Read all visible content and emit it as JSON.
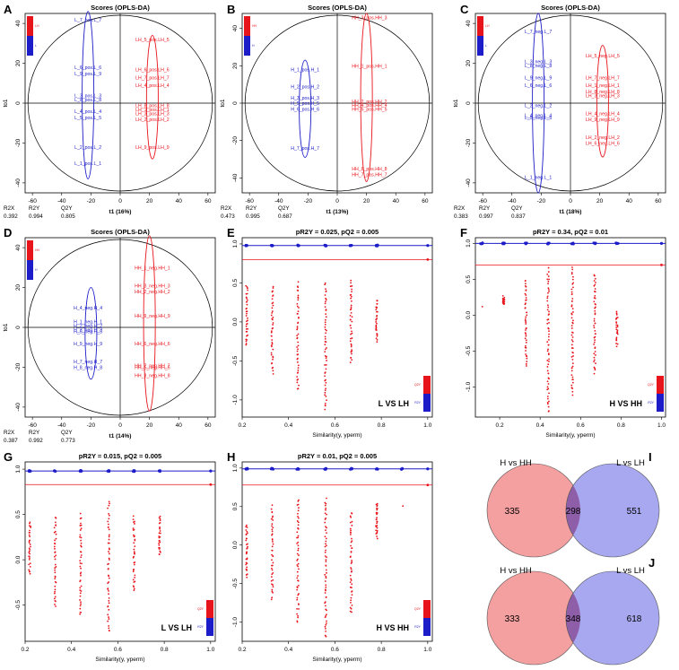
{
  "panel_letters": [
    "A",
    "B",
    "C",
    "D",
    "E",
    "F",
    "G",
    "H",
    "I",
    "J"
  ],
  "scores_title": "Scores (OPLS-DA)",
  "scores_ylabel": "to1",
  "stat_labels": [
    "R2X",
    "R2Y",
    "Q2Y"
  ],
  "colors": {
    "red": "#e8141b",
    "blue": "#1c1cc8",
    "venn_red": "#f4a0a0",
    "venn_blue": "#a8a8f0",
    "venn_overlap": "#8e5fa8"
  },
  "chart_data": [
    {
      "id": "A",
      "type": "scatter",
      "title": "Scores (OPLS-DA)",
      "xlabel": "t1 (16%)",
      "ylabel": "to1",
      "xlim": [
        -65,
        65
      ],
      "ylim": [
        -45,
        45
      ],
      "xticks": [
        -60,
        -40,
        -20,
        0,
        20,
        40,
        60
      ],
      "yticks": [
        -40,
        -20,
        0,
        20,
        40
      ],
      "stats": {
        "R2X": "0.392",
        "R2Y": "0.994",
        "Q2Y": "0.805"
      },
      "legend": [
        "LH",
        "L"
      ],
      "series": [
        {
          "name": "L",
          "color": "blue",
          "points": [
            {
              "label": "L_7_pos.L_7",
              "x": -22,
              "y": 41
            },
            {
              "label": "L_6_pos.L_6",
              "x": -22,
              "y": 17
            },
            {
              "label": "L_9_pos.L_9",
              "x": -22,
              "y": 14
            },
            {
              "label": "L_3_pos.L_3",
              "x": -22,
              "y": 3
            },
            {
              "label": "L_8_pos.L_8",
              "x": -22,
              "y": 1
            },
            {
              "label": "L_4_pos.L_4",
              "x": -22,
              "y": -5
            },
            {
              "label": "L_5_pos.L_5",
              "x": -22,
              "y": -8
            },
            {
              "label": "L_2_pos.L_2",
              "x": -22,
              "y": -23
            },
            {
              "label": "L_1_pos.L_1",
              "x": -22,
              "y": -31
            }
          ]
        },
        {
          "name": "LH",
          "color": "red",
          "points": [
            {
              "label": "LH_5_pos.LH_5",
              "x": 22,
              "y": 31
            },
            {
              "label": "LH_6_pos.LH_6",
              "x": 22,
              "y": 16
            },
            {
              "label": "LH_7_pos.LH_7",
              "x": 22,
              "y": 12
            },
            {
              "label": "LH_4_pos.LH_4",
              "x": 22,
              "y": 8
            },
            {
              "label": "LH_8_pos.LH_8",
              "x": 22,
              "y": -2
            },
            {
              "label": "LH_1_pos.LH_1",
              "x": 22,
              "y": -4
            },
            {
              "label": "LH_3_pos.LH_3",
              "x": 22,
              "y": -6
            },
            {
              "label": "LH_2_pos.LH_2",
              "x": 22,
              "y": -9
            },
            {
              "label": "LH_9_pos.LH_9",
              "x": 22,
              "y": -23
            }
          ]
        }
      ],
      "ellipses": [
        {
          "color": "blue",
          "cx": -22,
          "cy": 4,
          "rx": 4,
          "ry": 42
        },
        {
          "color": "red",
          "cx": 22,
          "cy": 3,
          "rx": 4,
          "ry": 31
        }
      ]
    },
    {
      "id": "B",
      "type": "scatter",
      "title": "Scores (OPLS-DA)",
      "xlabel": "t1 (13%)",
      "ylabel": "to1",
      "xlim": [
        -65,
        65
      ],
      "ylim": [
        -48,
        48
      ],
      "xticks": [
        -60,
        -40,
        -20,
        0,
        20,
        40,
        60
      ],
      "yticks": [
        -40,
        -20,
        0,
        20,
        40
      ],
      "stats": {
        "R2X": "0.473",
        "R2Y": "0.995",
        "Q2Y": "0.687"
      },
      "legend": [
        "HH",
        "H"
      ],
      "series": [
        {
          "name": "H",
          "color": "blue",
          "points": [
            {
              "label": "H_1_pos.H_1",
              "x": -22,
              "y": 17
            },
            {
              "label": "H_2_pos.H_2",
              "x": -22,
              "y": 8
            },
            {
              "label": "H_3_pos.H_3",
              "x": -22,
              "y": 2
            },
            {
              "label": "H_5_pos.H_5",
              "x": -22,
              "y": -1
            },
            {
              "label": "H_6_pos.H_6",
              "x": -22,
              "y": -4
            },
            {
              "label": "H_7_pos.H_7",
              "x": -22,
              "y": -25
            }
          ]
        },
        {
          "name": "HH",
          "color": "red",
          "points": [
            {
              "label": "HH_3_pos.HH_3",
              "x": 22,
              "y": 45
            },
            {
              "label": "HH_1_pos.HH_1",
              "x": 22,
              "y": 19
            },
            {
              "label": "HH_2_pos.HH_2",
              "x": 22,
              "y": 0
            },
            {
              "label": "HH_4_pos.HH_4",
              "x": 22,
              "y": -2
            },
            {
              "label": "HH_5_pos.HH_5",
              "x": 22,
              "y": -4
            },
            {
              "label": "HH_8_pos.HH_8",
              "x": 22,
              "y": -36
            },
            {
              "label": "HH_7_pos.HH_7",
              "x": 22,
              "y": -39
            }
          ]
        }
      ],
      "ellipses": [
        {
          "color": "blue",
          "cx": -22,
          "cy": -3,
          "rx": 4,
          "ry": 26
        },
        {
          "color": "red",
          "cx": 20,
          "cy": 3,
          "rx": 4,
          "ry": 45
        }
      ]
    },
    {
      "id": "C",
      "type": "scatter",
      "title": "Scores (OPLS-DA)",
      "xlabel": "t1 (18%)",
      "ylabel": "to1",
      "xlim": [
        -65,
        65
      ],
      "ylim": [
        -45,
        45
      ],
      "xticks": [
        -60,
        -40,
        -20,
        0,
        20,
        40,
        60
      ],
      "yticks": [
        -40,
        -20,
        0,
        20,
        40
      ],
      "stats": {
        "R2X": "0.383",
        "R2Y": "0.997",
        "Q2Y": "0.837"
      },
      "legend": [
        "LH",
        "L"
      ],
      "series": [
        {
          "name": "L",
          "color": "blue",
          "points": [
            {
              "label": "L_7_neg.L_7",
              "x": -22,
              "y": 35
            },
            {
              "label": "L_3_neg.L_3",
              "x": -22,
              "y": 20
            },
            {
              "label": "L_8_neg.L_8",
              "x": -22,
              "y": 18
            },
            {
              "label": "L_9_neg.L_9",
              "x": -22,
              "y": 12
            },
            {
              "label": "L_6_neg.L_6",
              "x": -22,
              "y": 8
            },
            {
              "label": "L_2_neg.L_2",
              "x": -22,
              "y": -2
            },
            {
              "label": "L_4_neg.L_4",
              "x": -22,
              "y": -7
            },
            {
              "label": "L_5_neg.L_5",
              "x": -22,
              "y": -8
            },
            {
              "label": "L_1_neg.L_1",
              "x": -22,
              "y": -38
            }
          ]
        },
        {
          "name": "LH",
          "color": "red",
          "points": [
            {
              "label": "LH_5_neg.LH_5",
              "x": 22,
              "y": 23
            },
            {
              "label": "LH_7_neg.LH_7",
              "x": 22,
              "y": 12
            },
            {
              "label": "LH_1_neg.LH_1",
              "x": 22,
              "y": 8
            },
            {
              "label": "LH_8_neg.LH_8",
              "x": 22,
              "y": 5
            },
            {
              "label": "LH_3_neg.LH_3",
              "x": 22,
              "y": 3
            },
            {
              "label": "LH_4_neg.LH_4",
              "x": 22,
              "y": -6
            },
            {
              "label": "LH_9_neg.LH_9",
              "x": 22,
              "y": -9
            },
            {
              "label": "LH_2_neg.LH_2",
              "x": 22,
              "y": -18
            },
            {
              "label": "LH_6_neg.LH_6",
              "x": 22,
              "y": -21
            }
          ]
        }
      ],
      "ellipses": [
        {
          "color": "blue",
          "cx": -22,
          "cy": 0,
          "rx": 4,
          "ry": 45
        },
        {
          "color": "red",
          "cx": 22,
          "cy": 1,
          "rx": 4,
          "ry": 28
        }
      ]
    },
    {
      "id": "D",
      "type": "scatter",
      "title": "Scores (OPLS-DA)",
      "xlabel": "t1 (14%)",
      "ylabel": "to1",
      "xlim": [
        -65,
        65
      ],
      "ylim": [
        -45,
        45
      ],
      "xticks": [
        -60,
        -40,
        -20,
        0,
        20,
        40,
        60
      ],
      "yticks": [
        -40,
        -20,
        0,
        20,
        40
      ],
      "stats": {
        "R2X": "0.387",
        "R2Y": "0.992",
        "Q2Y": "0.773"
      },
      "legend": [
        "HH",
        "H"
      ],
      "series": [
        {
          "name": "H",
          "color": "blue",
          "points": [
            {
              "label": "H_4_neg.H_4",
              "x": -22,
              "y": 9
            },
            {
              "label": "H_1_neg.H_1",
              "x": -22,
              "y": 2
            },
            {
              "label": "H_2_neg.H_2",
              "x": -22,
              "y": 0
            },
            {
              "label": "H_3_neg.H_3",
              "x": -22,
              "y": -2
            },
            {
              "label": "H_5_neg.H_5",
              "x": -22,
              "y": -3
            },
            {
              "label": "H_9_neg.H_9",
              "x": -22,
              "y": -9
            },
            {
              "label": "H_7_neg.H_7",
              "x": -22,
              "y": -18
            },
            {
              "label": "H_8_neg.H_8",
              "x": -22,
              "y": -21
            }
          ]
        },
        {
          "name": "HH",
          "color": "red",
          "points": [
            {
              "label": "HH_1_neg.HH_1",
              "x": 22,
              "y": 29
            },
            {
              "label": "HH_3_neg.HH_3",
              "x": 22,
              "y": 20
            },
            {
              "label": "HH_2_neg.HH_2",
              "x": 22,
              "y": 17
            },
            {
              "label": "HH_9_neg.HH_9",
              "x": 22,
              "y": 5
            },
            {
              "label": "HH_6_neg.HH_6",
              "x": 22,
              "y": -9
            },
            {
              "label": "HH_7_neg.HH_7",
              "x": 22,
              "y": -20
            },
            {
              "label": "HH_5_neg.HH_5",
              "x": 22,
              "y": -21
            },
            {
              "label": "HH_8_neg.HH_8",
              "x": 22,
              "y": -25
            }
          ]
        }
      ],
      "ellipses": [
        {
          "color": "blue",
          "cx": -20,
          "cy": -3,
          "rx": 4,
          "ry": 23
        },
        {
          "color": "red",
          "cx": 20,
          "cy": 2,
          "rx": 4,
          "ry": 44
        }
      ]
    },
    {
      "id": "E",
      "type": "scatter",
      "title": "pR2Y = 0.025, pQ2 = 0.005",
      "xlabel": "Similarity(y, yperm)",
      "legend": [
        "Q2Y",
        "R2Y"
      ],
      "annotation": "L VS LH",
      "xlim": [
        0.2,
        1.02
      ],
      "ylim": [
        -1.22,
        1.08
      ],
      "xticks": [
        0.2,
        0.4,
        0.6,
        0.8,
        1.0
      ],
      "yticks": [
        -1.0,
        -0.5,
        0.0,
        0.5,
        1.0
      ],
      "r2y_level": 0.98,
      "q2_level": 0.8,
      "sim_values": [
        0.22,
        0.33,
        0.44,
        0.56,
        0.67,
        0.78
      ],
      "q2_spread": [
        [
          -0.3,
          0.46
        ],
        [
          -0.65,
          0.45
        ],
        [
          -0.87,
          0.5
        ],
        [
          -1.12,
          0.5
        ],
        [
          -0.53,
          0.52
        ],
        [
          -0.25,
          0.28
        ]
      ]
    },
    {
      "id": "F",
      "type": "scatter",
      "title": "pR2Y = 0.34, pQ2 = 0.01",
      "xlabel": "Similarity(y, yperm)",
      "legend": [
        "Q2Y",
        "R2Y"
      ],
      "annotation": "H VS HH",
      "xlim": [
        0.08,
        1.02
      ],
      "ylim": [
        -1.42,
        1.08
      ],
      "xticks": [
        0.2,
        0.4,
        0.6,
        0.8,
        1.0
      ],
      "yticks": [
        -1.0,
        -0.5,
        0.0,
        0.5,
        1.0
      ],
      "r2y_level": 1.0,
      "q2_level": 0.7,
      "sim_values": [
        0.11,
        0.22,
        0.33,
        0.44,
        0.56,
        0.67,
        0.78
      ],
      "q2_spread": [
        [
          0.1,
          0.1
        ],
        [
          0.15,
          0.25
        ],
        [
          -0.72,
          0.5
        ],
        [
          -1.35,
          0.65
        ],
        [
          -1.1,
          0.65
        ],
        [
          -0.8,
          0.58
        ],
        [
          -0.42,
          0.05
        ]
      ]
    },
    {
      "id": "G",
      "type": "scatter",
      "title": "pR2Y = 0.015, pQ2 = 0.005",
      "xlabel": "Similarity(y, yperm)",
      "legend": [
        "Q2Y",
        "R2Y"
      ],
      "annotation": "L VS LH",
      "xlim": [
        0.2,
        1.02
      ],
      "ylim": [
        -0.9,
        1.08
      ],
      "xticks": [
        0.2,
        0.4,
        0.6,
        0.8,
        1.0
      ],
      "yticks": [
        -0.5,
        0.0,
        0.5,
        1.0
      ],
      "r2y_level": 0.98,
      "q2_level": 0.83,
      "sim_values": [
        0.22,
        0.33,
        0.44,
        0.56,
        0.67,
        0.78
      ],
      "q2_spread": [
        [
          -0.15,
          0.42
        ],
        [
          -0.53,
          0.48
        ],
        [
          -0.62,
          0.5
        ],
        [
          -0.8,
          0.64
        ],
        [
          -0.35,
          0.48
        ],
        [
          0.05,
          0.47
        ]
      ]
    },
    {
      "id": "H",
      "type": "scatter",
      "title": "pR2Y = 0.01, pQ2 = 0.005",
      "xlabel": "Similarity(y, yperm)",
      "legend": [
        "Q2Y",
        "R2Y"
      ],
      "annotation": "H VS HH",
      "xlim": [
        0.2,
        1.02
      ],
      "ylim": [
        -1.25,
        1.08
      ],
      "xticks": [
        0.2,
        0.4,
        0.6,
        0.8,
        1.0
      ],
      "yticks": [
        -1.0,
        -0.5,
        0.0,
        0.5,
        1.0
      ],
      "r2y_level": 0.99,
      "q2_level": 0.78,
      "sim_values": [
        0.22,
        0.33,
        0.44,
        0.56,
        0.67,
        0.78,
        0.89
      ],
      "q2_spread": [
        [
          -0.4,
          0.26
        ],
        [
          -0.72,
          0.5
        ],
        [
          -1.0,
          0.6
        ],
        [
          -1.2,
          0.6
        ],
        [
          -0.88,
          0.43
        ],
        [
          0.1,
          0.55
        ],
        [
          0.52,
          0.52
        ]
      ]
    },
    {
      "id": "I",
      "type": "venn",
      "sets": [
        "H vs HH",
        "L vs LH"
      ],
      "only_left": 335,
      "overlap": 298,
      "only_right": 551
    },
    {
      "id": "J",
      "type": "venn",
      "sets": [
        "H vs HH",
        "L vs LH"
      ],
      "only_left": 333,
      "overlap": 348,
      "only_right": 618
    }
  ]
}
